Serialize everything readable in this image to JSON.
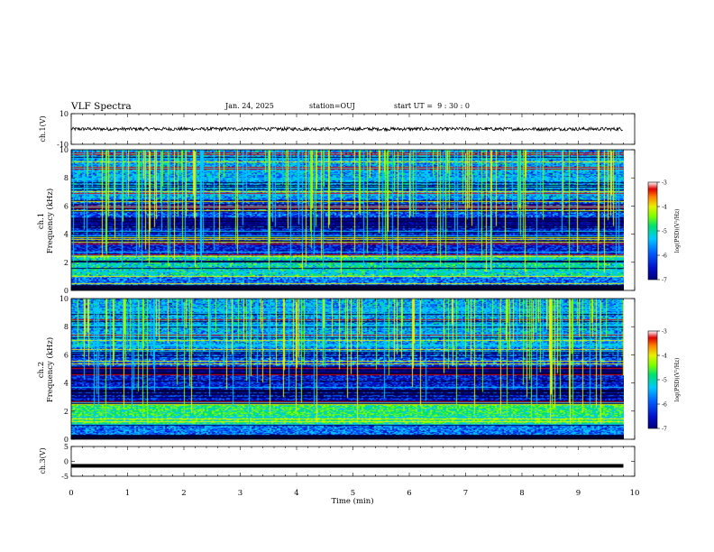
{
  "header": {
    "title": "VLF Spectra",
    "date": "Jan. 24, 2025",
    "station": "station=OUJ",
    "start": "start UT =  9 : 30 : 0"
  },
  "chart_data": [
    {
      "type": "line",
      "name": "ch1-waveform",
      "ylabel": "ch.1(V)",
      "ylim": [
        -10,
        10
      ],
      "yticks": [
        "10",
        "-10"
      ],
      "xlim": [
        0,
        10
      ],
      "series_level": 0,
      "note_visible": "dense black trace near 0 V"
    },
    {
      "type": "heatmap",
      "name": "ch1-spectrogram",
      "ylabel": "ch.1\nFrequency (kHz)",
      "ylim": [
        0,
        10
      ],
      "yticks": [
        "0",
        "2",
        "4",
        "6",
        "8",
        "10"
      ],
      "xlim": [
        0,
        10
      ],
      "colorbar": {
        "label": "log(PSD)(V²/Hz)",
        "range": [
          -7,
          -3
        ],
        "ticks": [
          "-3",
          "-4",
          "-5",
          "-6",
          "-7"
        ]
      }
    },
    {
      "type": "heatmap",
      "name": "ch2-spectrogram",
      "ylabel": "ch.2\nFrequency (kHz)",
      "ylim": [
        0,
        10
      ],
      "yticks": [
        "0",
        "2",
        "4",
        "6",
        "8",
        "10"
      ],
      "xlim": [
        0,
        10
      ],
      "colorbar": {
        "label": "log(PSD)(V²/Hz)",
        "range": [
          -7,
          -3
        ],
        "ticks": [
          "-3",
          "-4",
          "-5",
          "-6",
          "-7"
        ]
      }
    },
    {
      "type": "line",
      "name": "ch3-waveform",
      "ylabel": "ch.3(V)",
      "ylim": [
        -5,
        5
      ],
      "yticks": [
        "5",
        "0",
        "-5"
      ],
      "xlim": [
        0,
        10
      ],
      "series_level": -1.5
    }
  ],
  "xaxis": {
    "label": "Time (min)",
    "ticks": [
      "0",
      "1",
      "2",
      "3",
      "4",
      "5",
      "6",
      "7",
      "8",
      "9",
      "10"
    ],
    "data_end": 9.8
  },
  "colors": {
    "colormap": [
      "#00007a",
      "#0010c8",
      "#0060ff",
      "#00c8ff",
      "#00e070",
      "#7cff00",
      "#e8f000",
      "#ff8000",
      "#e00000",
      "#ffffff"
    ]
  }
}
